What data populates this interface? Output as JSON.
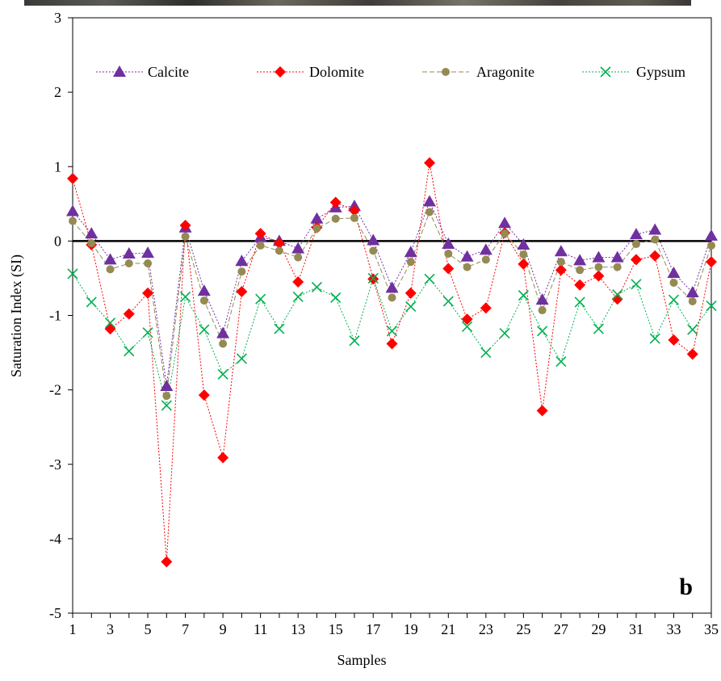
{
  "chart_data": {
    "type": "line",
    "panel_label": "b",
    "xlabel": "Samples",
    "ylabel": "Saturation Index (SI)",
    "xlim": [
      1,
      35
    ],
    "ylim": [
      -5,
      3
    ],
    "x_ticks": [
      1,
      3,
      5,
      7,
      9,
      11,
      13,
      15,
      17,
      19,
      21,
      23,
      25,
      27,
      29,
      31,
      33,
      35
    ],
    "y_ticks": [
      -5,
      -4,
      -3,
      -2,
      -1,
      0,
      1,
      2,
      3
    ],
    "reference_line": 0,
    "legend_position": "top",
    "x": [
      1,
      2,
      3,
      4,
      5,
      6,
      7,
      8,
      9,
      10,
      11,
      12,
      13,
      14,
      15,
      16,
      17,
      18,
      19,
      20,
      21,
      22,
      23,
      24,
      25,
      26,
      27,
      28,
      29,
      30,
      31,
      32,
      33,
      34,
      35
    ],
    "series": [
      {
        "name": "Calcite",
        "color": "#7030a0",
        "marker": "triangle",
        "values": [
          0.4,
          0.1,
          -0.25,
          -0.17,
          -0.16,
          -1.95,
          0.18,
          -0.67,
          -1.24,
          -0.27,
          0.05,
          0.0,
          -0.1,
          0.3,
          0.45,
          0.47,
          0.01,
          -0.63,
          -0.15,
          0.53,
          -0.04,
          -0.21,
          -0.12,
          0.24,
          -0.05,
          -0.79,
          -0.14,
          -0.26,
          -0.22,
          -0.22,
          0.09,
          0.15,
          -0.43,
          -0.69,
          0.07
        ]
      },
      {
        "name": "Dolomite",
        "color": "#ff0000",
        "marker": "diamond",
        "values": [
          0.84,
          -0.05,
          -1.18,
          -0.98,
          -0.7,
          -4.31,
          0.21,
          -2.07,
          -2.91,
          -0.68,
          0.1,
          -0.03,
          -0.55,
          0.18,
          0.52,
          0.41,
          -0.51,
          -1.38,
          -0.7,
          1.05,
          -0.37,
          -1.05,
          -0.9,
          0.11,
          -0.31,
          -2.28,
          -0.39,
          -0.59,
          -0.47,
          -0.78,
          -0.25,
          -0.2,
          -1.33,
          -1.52,
          -0.28
        ]
      },
      {
        "name": "Aragonite",
        "color": "#948a54",
        "marker": "circle",
        "values": [
          0.27,
          -0.03,
          -0.38,
          -0.3,
          -0.3,
          -2.08,
          0.06,
          -0.8,
          -1.38,
          -0.41,
          -0.06,
          -0.13,
          -0.22,
          0.17,
          0.3,
          0.31,
          -0.13,
          -0.76,
          -0.28,
          0.39,
          -0.17,
          -0.35,
          -0.25,
          0.1,
          -0.18,
          -0.93,
          -0.28,
          -0.39,
          -0.35,
          -0.35,
          -0.04,
          0.02,
          -0.56,
          -0.81,
          -0.06
        ]
      },
      {
        "name": "Gypsum",
        "color": "#00b050",
        "marker": "x",
        "values": [
          -0.44,
          -0.82,
          -1.1,
          -1.48,
          -1.23,
          -2.21,
          -0.75,
          -1.19,
          -1.79,
          -1.58,
          -0.78,
          -1.18,
          -0.75,
          -0.62,
          -0.76,
          -1.34,
          -0.5,
          -1.21,
          -0.88,
          -0.51,
          -0.81,
          -1.15,
          -1.5,
          -1.24,
          -0.73,
          -1.21,
          -1.62,
          -0.82,
          -1.18,
          -0.72,
          -0.58,
          -1.31,
          -0.79,
          -1.19,
          -0.87
        ]
      }
    ]
  }
}
